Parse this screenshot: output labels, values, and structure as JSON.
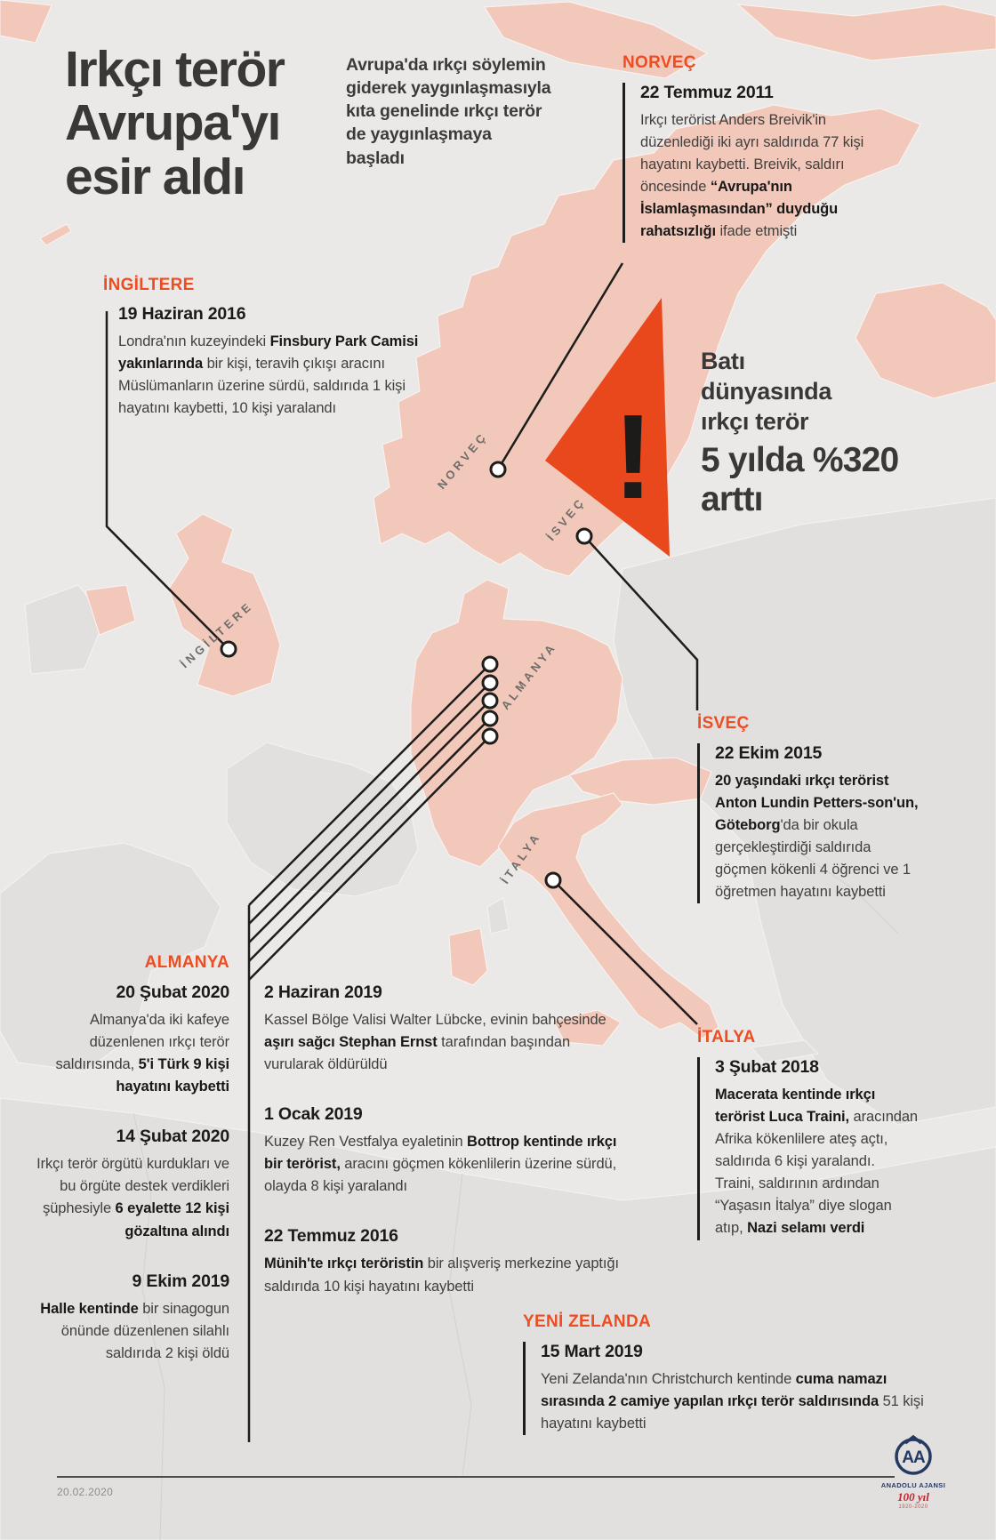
{
  "title": {
    "lines": [
      "Irkçı terör",
      "Avrupa'yı",
      "esir aldı"
    ]
  },
  "intro": "Avrupa'da ırkçı söylemin giderek yaygınlaşmasıyla kıta genelinde ırkçı terör de yaygınlaşmaya başladı",
  "warning": {
    "icon": "!",
    "label": "Batı dünyasında ırkçı terör",
    "stat": "5 yılda %320 arttı"
  },
  "map": {
    "labels": {
      "norvec": "NORVEÇ",
      "isvec": "İSVEÇ",
      "almanya": "ALMANYA",
      "italya": "İTALYA",
      "ingiltere": "İNGİLTERE"
    }
  },
  "sections": {
    "norvec": {
      "header": "NORVEÇ",
      "events": [
        {
          "date": "22 Temmuz 2011",
          "body": [
            {
              "t": "Irkçı terörist Anders Breivik'in düzenlediği iki ayrı saldırıda 77 kişi hayatını kaybetti. Breivik, saldırı öncesinde "
            },
            {
              "t": "“Avrupa'nın İslamlaşmasından” duyduğu rahatsızlığı",
              "b": true
            },
            {
              "t": " ifade etmişti"
            }
          ]
        }
      ]
    },
    "ingiltere": {
      "header": "İNGİLTERE",
      "events": [
        {
          "date": "19 Haziran 2016",
          "body": [
            {
              "t": "Londra'nın kuzeyindeki "
            },
            {
              "t": "Finsbury Park Camisi yakınlarında",
              "b": true
            },
            {
              "t": " bir kişi, teravih çıkışı aracını Müslümanların üzerine sürdü, saldırıda 1 kişi hayatını kaybetti, 10 kişi yaralandı"
            }
          ]
        }
      ]
    },
    "isvec": {
      "header": "İSVEÇ",
      "events": [
        {
          "date": "22 Ekim 2015",
          "body": [
            {
              "t": "20 yaşındaki ırkçı terörist Anton Lundin Petters-son'un, Göteborg",
              "b": true
            },
            {
              "t": "'da bir okula gerçekleştirdiği saldırıda göçmen kökenli 4 öğrenci ve 1 öğretmen hayatını kaybetti"
            }
          ]
        }
      ]
    },
    "almanya": {
      "header": "ALMANYA",
      "events": [
        {
          "date": "20 Şubat 2020",
          "body": [
            {
              "t": "Almanya'da iki kafeye düzenlenen ırkçı terör saldırısında, "
            },
            {
              "t": "5'i Türk 9 kişi hayatını kaybetti",
              "b": true
            }
          ]
        },
        {
          "date": "14 Şubat 2020",
          "body": [
            {
              "t": "Irkçı terör örgütü kurdukları ve bu örgüte destek verdikleri şüphesiyle "
            },
            {
              "t": "6 eyalette 12 kişi gözaltına alındı",
              "b": true
            }
          ]
        },
        {
          "date": "9 Ekim 2019",
          "body": [
            {
              "t": "Halle kentinde",
              "b": true
            },
            {
              "t": " bir sinagogun önünde düzenlenen silahlı saldırıda 2 kişi öldü"
            }
          ]
        }
      ]
    },
    "almanya_orta": {
      "events": [
        {
          "date": "2 Haziran 2019",
          "body": [
            {
              "t": "Kassel Bölge Valisi Walter Lübcke, evinin bahçesinde "
            },
            {
              "t": "aşırı sağcı Stephan Ernst",
              "b": true
            },
            {
              "t": " tarafından başından vurularak öldürüldü"
            }
          ]
        },
        {
          "date": "1 Ocak 2019",
          "body": [
            {
              "t": "Kuzey Ren Vestfalya eyaletinin "
            },
            {
              "t": "Bottrop kentinde ırkçı bir terörist,",
              "b": true
            },
            {
              "t": " aracını göçmen kökenlilerin üzerine sürdü, olayda 8 kişi yaralandı"
            }
          ]
        },
        {
          "date": "22 Temmuz 2016",
          "body": [
            {
              "t": "Münih'te ırkçı teröristin",
              "b": true
            },
            {
              "t": " bir alışveriş merkezine yaptığı saldırıda 10 kişi hayatını kaybetti"
            }
          ]
        }
      ]
    },
    "italya": {
      "header": "İTALYA",
      "events": [
        {
          "date": "3 Şubat 2018",
          "body": [
            {
              "t": "Macerata kentinde ırkçı terörist Luca Traini,",
              "b": true
            },
            {
              "t": " aracından Afrika kökenlilere ateş açtı, saldırıda 6 kişi yaralandı. Traini, saldırının ardından “Yaşasın İtalya” diye slogan atıp, "
            },
            {
              "t": "Nazi selamı verdi",
              "b": true
            }
          ]
        }
      ]
    },
    "yeni_zelanda": {
      "header": "YENİ ZELANDA",
      "events": [
        {
          "date": "15 Mart 2019",
          "body": [
            {
              "t": "Yeni Zelanda'nın Christchurch kentinde "
            },
            {
              "t": "cuma namazı sırasında 2 camiye yapılan ırkçı terör saldırısında",
              "b": true
            },
            {
              "t": " 51 kişi hayatını kaybetti"
            }
          ]
        }
      ]
    }
  },
  "footer": {
    "date": "20.02.2020",
    "agency": {
      "initials": "AA",
      "name": "ANADOLU AJANSI",
      "anniversary": "100 yıl",
      "years": "1920-2020"
    }
  },
  "colors": {
    "accent": "#ee4c21",
    "triangle": "#e8481c",
    "highlight_country": "#f2c8ba",
    "ink": "#1d1d1b",
    "logo_navy": "#253a63",
    "logo_red": "#c7202f"
  }
}
